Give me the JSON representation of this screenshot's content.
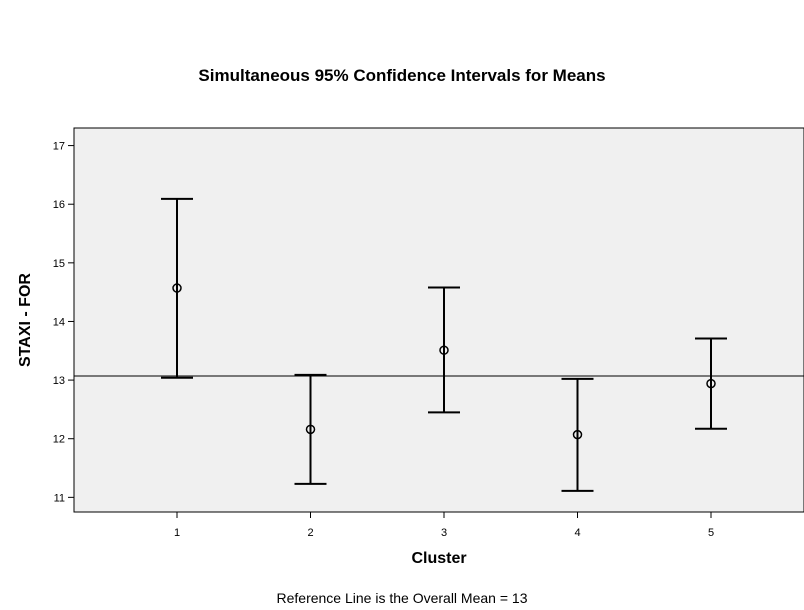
{
  "chart_data": {
    "type": "error-bar",
    "title": "Simultaneous 95% Confidence Intervals for Means",
    "xlabel": "Cluster",
    "ylabel": "STAXI - FOR",
    "footnote": "Reference Line is the Overall Mean = 13",
    "categories": [
      "1",
      "2",
      "3",
      "4",
      "5"
    ],
    "means": [
      14.57,
      12.16,
      13.51,
      12.07,
      12.94
    ],
    "lower": [
      13.04,
      11.23,
      12.45,
      11.11,
      12.17
    ],
    "upper": [
      16.09,
      13.09,
      14.58,
      13.02,
      13.71
    ],
    "reference_line": 13.07,
    "ylim": [
      10.75,
      17.3
    ],
    "yticks": [
      11,
      12,
      13,
      14,
      15,
      16,
      17
    ],
    "plot_background": "#f0f0f0"
  }
}
